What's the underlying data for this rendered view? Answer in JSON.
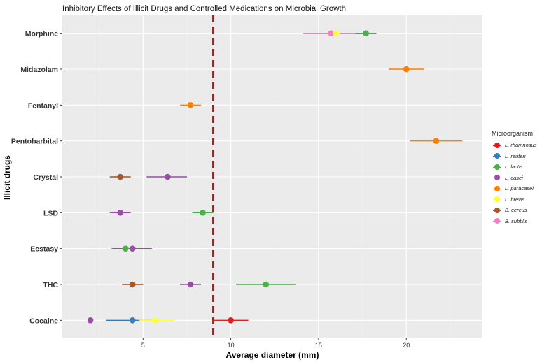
{
  "chart_data": {
    "type": "dot-errorbar",
    "title": "Inhibitory Effects of Illicit Drugs and Controlled Medications on Microbial Growth",
    "xlabel": "Average diameter (mm)",
    "ylabel": "Illicit drugs",
    "xlim": [
      0.4,
      24.3
    ],
    "x_ticks": [
      5,
      10,
      15,
      20
    ],
    "reference_line": {
      "x": 9.0,
      "style": "dashed",
      "color": "#ee0000"
    },
    "categories": [
      "Morphine",
      "Midazolam",
      "Fentanyl",
      "Pentobarbital",
      "Crystal",
      "LSD",
      "Ecstasy",
      "THC",
      "Cocaine"
    ],
    "legend": {
      "title": "Microorganism",
      "items": [
        {
          "name": "L. rhamnosus",
          "color": "#e41a1c"
        },
        {
          "name": "L. reuteri",
          "color": "#377eb8"
        },
        {
          "name": "L. lactis",
          "color": "#4daf4a"
        },
        {
          "name": "L. casei",
          "color": "#984ea3"
        },
        {
          "name": "L. paracasei",
          "color": "#ff7f00"
        },
        {
          "name": "L. brevis",
          "color": "#ffff33"
        },
        {
          "name": "B. cereus",
          "color": "#a65628"
        },
        {
          "name": "B. subtilis",
          "color": "#f781bf"
        }
      ]
    },
    "points": [
      {
        "drug": "Morphine",
        "organism": "B. subtilis",
        "color": "#f781bf",
        "mean": 15.7,
        "low": 14.1,
        "high": 17.3
      },
      {
        "drug": "Morphine",
        "organism": "L. brevis",
        "color": "#ffff33",
        "mean": 16.0,
        "low": 15.8,
        "high": 16.2
      },
      {
        "drug": "Morphine",
        "organism": "L. lactis",
        "color": "#4daf4a",
        "mean": 17.7,
        "low": 17.1,
        "high": 18.3
      },
      {
        "drug": "Midazolam",
        "organism": "L. paracasei",
        "color": "#ff7f00",
        "mean": 20.0,
        "low": 19.0,
        "high": 21.0
      },
      {
        "drug": "Fentanyl",
        "organism": "L. paracasei",
        "color": "#ff7f00",
        "mean": 7.7,
        "low": 7.1,
        "high": 8.3
      },
      {
        "drug": "Pentobarbital",
        "organism": "L. paracasei",
        "color": "#ff7f00",
        "mean": 21.7,
        "low": 20.2,
        "high": 23.2
      },
      {
        "drug": "Crystal",
        "organism": "B. cereus",
        "color": "#a65628",
        "mean": 3.7,
        "low": 3.1,
        "high": 4.3
      },
      {
        "drug": "Crystal",
        "organism": "L. casei",
        "color": "#984ea3",
        "mean": 6.4,
        "low": 5.2,
        "high": 7.5
      },
      {
        "drug": "LSD",
        "organism": "L. casei",
        "color": "#984ea3",
        "mean": 3.7,
        "low": 3.1,
        "high": 4.3
      },
      {
        "drug": "LSD",
        "organism": "L. lactis",
        "color": "#4daf4a",
        "mean": 8.4,
        "low": 7.8,
        "high": 9.0
      },
      {
        "drug": "Ecstasy",
        "organism": "L. lactis",
        "color": "#4daf4a",
        "mean": 4.0,
        "low": 3.2,
        "high": 4.8
      },
      {
        "drug": "Ecstasy",
        "organism": "L. casei",
        "color": "#984ea3",
        "mean": 4.4,
        "low": 3.3,
        "high": 5.5
      },
      {
        "drug": "THC",
        "organism": "B. cereus",
        "color": "#a65628",
        "mean": 4.4,
        "low": 3.8,
        "high": 5.0
      },
      {
        "drug": "THC",
        "organism": "L. casei",
        "color": "#984ea3",
        "mean": 7.7,
        "low": 7.1,
        "high": 8.3
      },
      {
        "drug": "THC",
        "organism": "L. lactis",
        "color": "#4daf4a",
        "mean": 12.0,
        "low": 10.3,
        "high": 13.7
      },
      {
        "drug": "Cocaine",
        "organism": "L. casei",
        "color": "#984ea3",
        "mean": 2.0,
        "low": 2.0,
        "high": 2.0
      },
      {
        "drug": "Cocaine",
        "organism": "L. reuteri",
        "color": "#377eb8",
        "mean": 4.4,
        "low": 2.9,
        "high": 5.9
      },
      {
        "drug": "Cocaine",
        "organism": "L. brevis",
        "color": "#ffff33",
        "mean": 5.7,
        "low": 4.8,
        "high": 6.8
      },
      {
        "drug": "Cocaine",
        "organism": "L. rhamnosus",
        "color": "#e41a1c",
        "mean": 10.0,
        "low": 9.0,
        "high": 11.0
      }
    ]
  }
}
